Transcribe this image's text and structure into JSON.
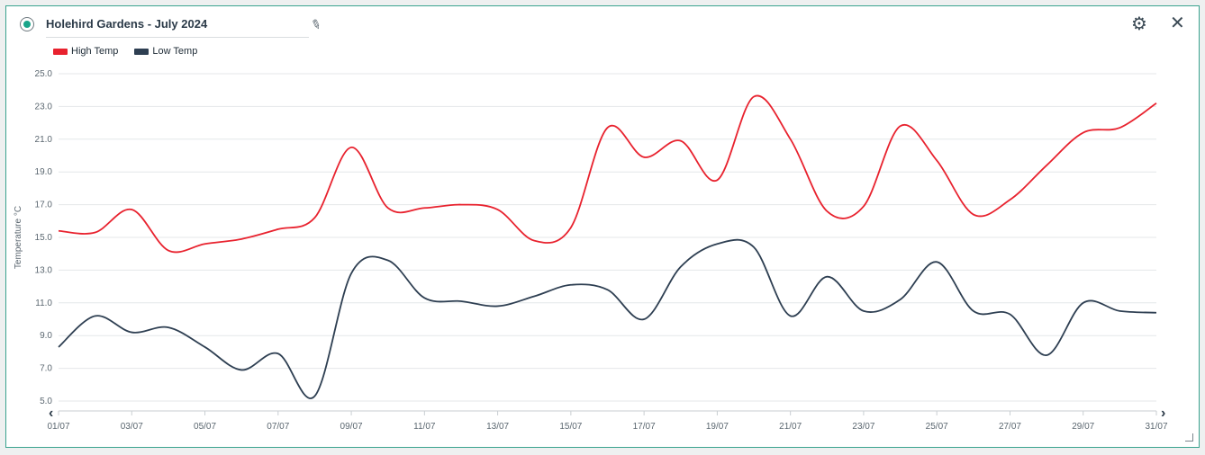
{
  "header": {
    "title": "Holehird Gardens - July 2024",
    "edit_icon": "pencil-icon",
    "settings_icon": "gear-icon",
    "close_icon": "close-icon"
  },
  "colors": {
    "high": "#e8222e",
    "low": "#2e3f52",
    "accent": "#1aa58a"
  },
  "chart_data": {
    "type": "line",
    "ylabel": "Temperature °C",
    "ylim": [
      5,
      25
    ],
    "yticks": [
      "25.0",
      "23.0",
      "21.0",
      "19.0",
      "17.0",
      "15.0",
      "13.0",
      "11.0",
      "9.0",
      "7.0",
      "5.0"
    ],
    "xticks": [
      "01/07",
      "03/07",
      "05/07",
      "07/07",
      "09/07",
      "11/07",
      "13/07",
      "15/07",
      "17/07",
      "19/07",
      "21/07",
      "23/07",
      "25/07",
      "27/07",
      "29/07",
      "31/07"
    ],
    "grid": true,
    "legend": "top-left",
    "series": [
      {
        "name": "High Temp",
        "values": [
          15.4,
          15.3,
          16.7,
          14.2,
          14.6,
          14.9,
          15.5,
          16.2,
          20.5,
          16.8,
          16.8,
          17.0,
          16.7,
          14.8,
          15.6,
          21.7,
          19.9,
          20.9,
          18.5,
          23.6,
          21.0,
          16.6,
          16.9,
          21.8,
          19.7,
          16.4,
          17.3,
          19.4,
          21.4,
          21.7,
          23.2
        ]
      },
      {
        "name": "Low Temp",
        "values": [
          8.3,
          10.2,
          9.2,
          9.5,
          8.3,
          6.9,
          7.9,
          5.3,
          12.8,
          13.6,
          11.3,
          11.1,
          10.8,
          11.4,
          12.1,
          11.8,
          10.0,
          13.2,
          14.6,
          14.4,
          10.2,
          12.6,
          10.5,
          11.2,
          13.5,
          10.5,
          10.3,
          7.8,
          11.0,
          10.5,
          10.4
        ]
      }
    ]
  }
}
